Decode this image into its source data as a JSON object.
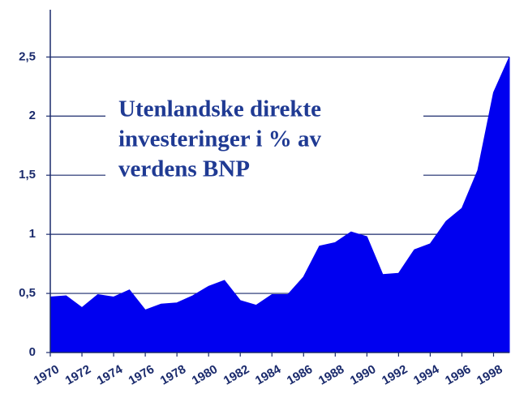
{
  "chart_data": {
    "type": "area",
    "title": [
      "Utenlandske direkte",
      "investeringer i % av",
      "verdens BNP"
    ],
    "x": [
      1970,
      1971,
      1972,
      1973,
      1974,
      1975,
      1976,
      1977,
      1978,
      1979,
      1980,
      1981,
      1982,
      1983,
      1984,
      1985,
      1986,
      1987,
      1988,
      1989,
      1990,
      1991,
      1992,
      1993,
      1994,
      1995,
      1996,
      1997,
      1998,
      1999
    ],
    "values": [
      0.47,
      0.48,
      0.38,
      0.49,
      0.47,
      0.53,
      0.36,
      0.41,
      0.42,
      0.48,
      0.56,
      0.61,
      0.44,
      0.4,
      0.49,
      0.49,
      0.64,
      0.9,
      0.93,
      1.02,
      0.98,
      0.66,
      0.67,
      0.87,
      0.92,
      1.11,
      1.22,
      1.54,
      2.2,
      2.5
    ],
    "color": "#0000f0",
    "xlim": [
      1970,
      1999
    ],
    "xticks": [
      1970,
      1972,
      1974,
      1976,
      1978,
      1980,
      1982,
      1984,
      1986,
      1988,
      1990,
      1992,
      1994,
      1996,
      1998
    ],
    "ylim": [
      0,
      2.9
    ],
    "yticks": [
      0,
      {
        "value": 0.5,
        "label": "0,5"
      },
      1,
      {
        "value": 1.5,
        "label": "1,5"
      },
      2,
      {
        "value": 2.5,
        "label": "2,5"
      }
    ],
    "grid": true
  }
}
